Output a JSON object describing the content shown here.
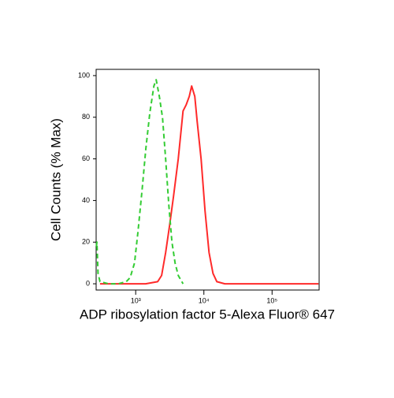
{
  "chart_data": {
    "type": "line",
    "x_label": "ADP ribosylation factor 5-Alexa Fluor® 647",
    "y_label": "Cell Counts (% Max)",
    "x_scale": "log",
    "xlim": [
      263,
      490000
    ],
    "ylim": [
      -3,
      103
    ],
    "xticks": [
      {
        "value": 1000,
        "label": "10³"
      },
      {
        "value": 10000,
        "label": "10⁴"
      },
      {
        "value": 100000,
        "label": "10⁵"
      }
    ],
    "yticks": [
      0,
      20,
      40,
      60,
      80,
      100
    ],
    "series": [
      {
        "color": "#ff2a2a",
        "dash": false,
        "x": [
          300,
          1400,
          2100,
          2400,
          2750,
          3140,
          3590,
          4210,
          4950,
          5500,
          6100,
          6620,
          7360,
          7970,
          9100,
          10400,
          11900,
          13600,
          15500,
          20300,
          480000
        ],
        "values": [
          0,
          0,
          1,
          4,
          15,
          28,
          42,
          60,
          83,
          86,
          90,
          95,
          90,
          78,
          60,
          35,
          15,
          5,
          1,
          0,
          0
        ]
      },
      {
        "color": "#33cc33",
        "dash": true,
        "x": [
          265,
          270,
          280,
          300,
          400,
          556,
          727,
          830,
          960,
          1080,
          1240,
          1410,
          1610,
          1850,
          2000,
          2220,
          2470,
          2750,
          3060,
          3400,
          3780,
          4210,
          4950
        ],
        "values": [
          18,
          20,
          5,
          1,
          0,
          0,
          1,
          3,
          10,
          25,
          45,
          65,
          82,
          95,
          98,
          90,
          80,
          60,
          38,
          20,
          10,
          4,
          0
        ]
      }
    ]
  }
}
